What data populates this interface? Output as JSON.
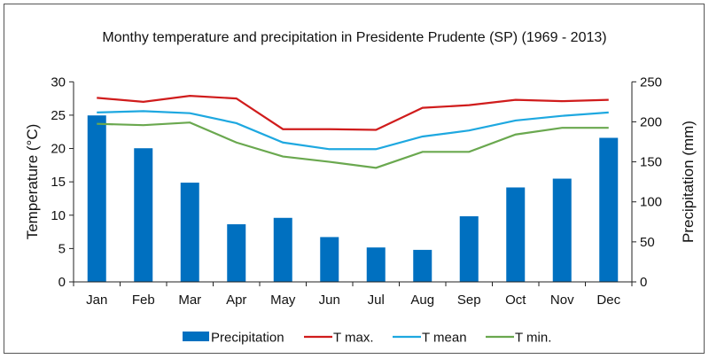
{
  "chart_data": {
    "type": "bar+line",
    "title": "Monthy temperature and precipitation in Presidente Prudente (SP) (1969 - 2013)",
    "ylabel": "Temperature (°C)",
    "y2label": "Precipitation (mm)",
    "ylim": [
      0,
      30
    ],
    "y2lim": [
      0,
      250
    ],
    "yticks": [
      0,
      5,
      10,
      15,
      20,
      25,
      30
    ],
    "y2ticks": [
      0,
      50,
      100,
      150,
      200,
      250
    ],
    "grid": false,
    "legend_position": "bottom",
    "categories": [
      "Jan",
      "Feb",
      "Mar",
      "Apr",
      "May",
      "Jun",
      "Jul",
      "Aug",
      "Sep",
      "Oct",
      "Nov",
      "Dec"
    ],
    "series": [
      {
        "name": "Precipitation",
        "type": "bar",
        "axis": "right",
        "color": "#0070c0",
        "values": [
          208,
          167,
          124,
          72,
          80,
          56,
          43,
          40,
          82,
          118,
          129,
          180
        ]
      },
      {
        "name": "T max.",
        "type": "line",
        "axis": "left",
        "color": "#d01c1c",
        "values": [
          27.6,
          27.0,
          27.9,
          27.5,
          22.9,
          22.9,
          22.8,
          26.1,
          26.5,
          27.3,
          27.1,
          27.3
        ]
      },
      {
        "name": "T mean",
        "type": "line",
        "axis": "left",
        "color": "#1ea8e0",
        "values": [
          25.4,
          25.6,
          25.3,
          23.8,
          20.9,
          19.9,
          19.9,
          21.8,
          22.7,
          24.2,
          24.9,
          25.4
        ]
      },
      {
        "name": "T min.",
        "type": "line",
        "axis": "left",
        "color": "#6aa84f",
        "values": [
          23.7,
          23.5,
          23.9,
          20.9,
          18.8,
          18.0,
          17.1,
          19.5,
          19.5,
          22.1,
          23.1,
          23.1
        ]
      }
    ]
  }
}
